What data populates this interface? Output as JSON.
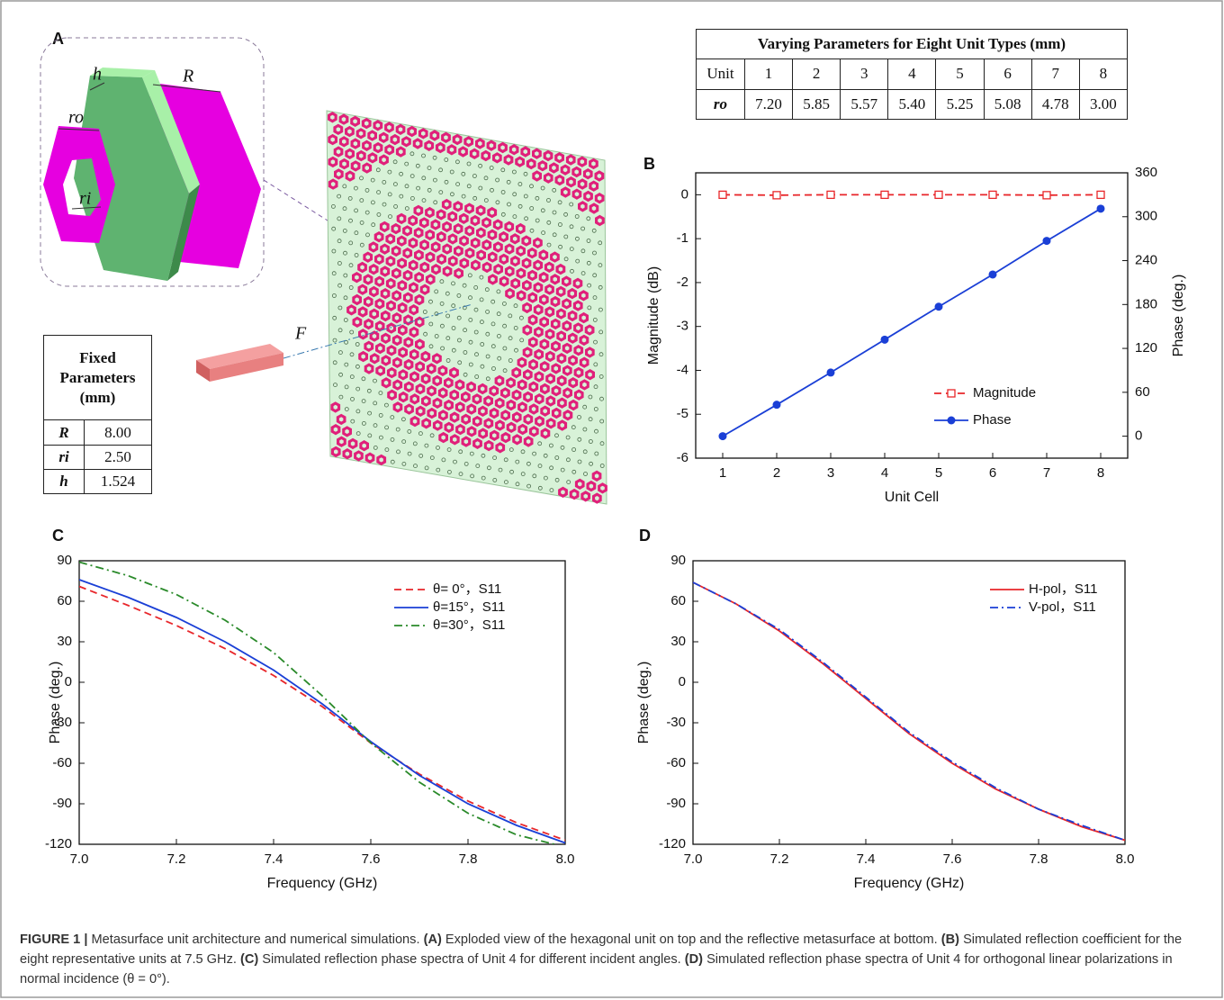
{
  "panel_a": {
    "label": "A",
    "diagram_labels": {
      "h": "h",
      "R": "R",
      "ro": "ro",
      "ri": "ri",
      "F": "F"
    },
    "varying_table": {
      "title": "Varying Parameters for Eight Unit Types (mm)",
      "header": [
        "Unit",
        "1",
        "2",
        "3",
        "4",
        "5",
        "6",
        "7",
        "8"
      ],
      "row": [
        "ro",
        "7.20",
        "5.85",
        "5.57",
        "5.40",
        "5.25",
        "5.08",
        "4.78",
        "3.00"
      ]
    },
    "fixed_table": {
      "title": "Fixed Parameters (mm)",
      "rows": [
        [
          "R",
          "8.00"
        ],
        [
          "ri",
          "2.50"
        ],
        [
          "h",
          "1.524"
        ]
      ]
    }
  },
  "chart_data": [
    {
      "type": "line",
      "label": "B",
      "x_label": "Unit Cell",
      "y_label": "Magnitude (dB)",
      "y2_label": "Phase (deg.)",
      "x": [
        1,
        2,
        3,
        4,
        5,
        6,
        7,
        8
      ],
      "xlim": [
        0.5,
        8.5
      ],
      "xticks": [
        1,
        2,
        3,
        4,
        5,
        6,
        7,
        8
      ],
      "ylim": [
        -6,
        0.5
      ],
      "yticks": [
        -6,
        -5,
        -4,
        -3,
        -2,
        -1,
        0
      ],
      "y2lim": [
        -30,
        360
      ],
      "y2ticks": [
        0,
        60,
        120,
        180,
        240,
        300,
        360
      ],
      "legend": "lower right",
      "series": [
        {
          "name": "Magnitude",
          "color": "#e8262a",
          "dash": "dashed",
          "marker": "square-open",
          "values": [
            0,
            -0.01,
            0,
            0,
            0,
            0,
            -0.01,
            0
          ]
        },
        {
          "name": "Phase",
          "color": "#1a3fd6",
          "dash": "solid",
          "marker": "circle",
          "axis": "y2",
          "values": [
            0,
            43,
            87,
            132,
            177,
            221,
            267,
            311
          ]
        }
      ]
    },
    {
      "type": "line",
      "label": "C",
      "x_label": "Frequency (GHz)",
      "y_label": "Phase (deg.)",
      "x": [
        7.0,
        7.1,
        7.2,
        7.3,
        7.4,
        7.5,
        7.6,
        7.7,
        7.8,
        7.9,
        8.0
      ],
      "xlim": [
        7.0,
        8.0
      ],
      "xticks": [
        {
          "value": 7.0,
          "label": "7.0"
        },
        7.2,
        7.4,
        7.6,
        7.8,
        {
          "value": 8.0,
          "label": "8.0"
        }
      ],
      "ylim": [
        -120,
        90
      ],
      "yticks": [
        -120,
        -90,
        -60,
        -30,
        0,
        30,
        60,
        90
      ],
      "legend": "upper right",
      "series": [
        {
          "name": "θ= 0°，S11",
          "color": "#e8262a",
          "dash": "dashed",
          "values": [
            71,
            57,
            42,
            25,
            5,
            -18,
            -45,
            -68,
            -88,
            -104,
            -117
          ]
        },
        {
          "name": "θ=15°，S11",
          "color": "#1a3fd6",
          "dash": "solid",
          "values": [
            76,
            63,
            48,
            30,
            9,
            -16,
            -44,
            -69,
            -90,
            -106,
            -119
          ]
        },
        {
          "name": "θ=30°，S11",
          "color": "#2a8a2a",
          "dash": "dashdot",
          "values": [
            89,
            79,
            65,
            46,
            22,
            -10,
            -45,
            -74,
            -97,
            -113,
            -122
          ]
        }
      ]
    },
    {
      "type": "line",
      "label": "D",
      "x_label": "Frequency (GHz)",
      "y_label": "Phase (deg.)",
      "x": [
        7.0,
        7.1,
        7.2,
        7.3,
        7.4,
        7.5,
        7.6,
        7.7,
        7.8,
        7.9,
        8.0
      ],
      "xlim": [
        7.0,
        8.0
      ],
      "xticks": [
        {
          "value": 7.0,
          "label": "7.0"
        },
        7.2,
        7.4,
        7.6,
        7.8,
        {
          "value": 8.0,
          "label": "8.0"
        }
      ],
      "ylim": [
        -120,
        90
      ],
      "yticks": [
        -120,
        -90,
        -60,
        -30,
        0,
        30,
        60,
        90
      ],
      "legend": "upper right",
      "series": [
        {
          "name": "H-pol，S11",
          "color": "#e8262a",
          "dash": "solid",
          "values": [
            74,
            58,
            38,
            14,
            -12,
            -38,
            -60,
            -79,
            -94,
            -107,
            -117
          ]
        },
        {
          "name": "V-pol，S11",
          "color": "#1a3fd6",
          "dash": "dashdot",
          "values": [
            74,
            58,
            39,
            15,
            -11,
            -37,
            -59,
            -78,
            -94,
            -106,
            -117
          ]
        }
      ]
    }
  ],
  "caption": {
    "segments": [
      {
        "text": "FIGURE 1 |",
        "bold": true
      },
      {
        "text": " Metasurface unit architecture and numerical simulations. "
      },
      {
        "text": "(A)",
        "bold": true
      },
      {
        "text": " Exploded view of the hexagonal unit on top and the reflective metasurface at bottom. "
      },
      {
        "text": "(B)",
        "bold": true
      },
      {
        "text": " Simulated reflection coefficient for the eight representative units at 7.5 GHz. "
      },
      {
        "text": "(C)",
        "bold": true
      },
      {
        "text": " Simulated reflection phase spectra of Unit 4 for different incident angles. "
      },
      {
        "text": "(D)",
        "bold": true
      },
      {
        "text": " Simulated reflection phase spectra of Unit 4 for orthogonal linear polarizations in normal incidence (θ = 0°)."
      }
    ]
  }
}
